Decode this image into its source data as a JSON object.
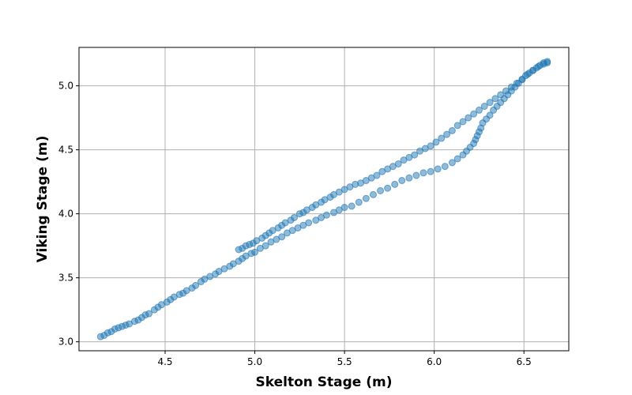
{
  "chart_data": {
    "type": "scatter",
    "title": "",
    "xlabel": "Skelton Stage (m)",
    "ylabel": "Viking Stage (m)",
    "xlim": [
      4.02,
      6.75
    ],
    "ylim": [
      2.93,
      5.3
    ],
    "xticks": [
      4.5,
      5.0,
      5.5,
      6.0,
      6.5
    ],
    "xtick_labels": [
      "4.5",
      "5.0",
      "5.5",
      "6.0",
      "6.5"
    ],
    "yticks": [
      3.0,
      3.5,
      4.0,
      4.5,
      5.0
    ],
    "ytick_labels": [
      "3.0",
      "3.5",
      "4.0",
      "4.5",
      "5.0"
    ],
    "grid": true,
    "color": "#1f77b4",
    "series": [
      {
        "points": [
          [
            4.14,
            3.04
          ],
          [
            4.16,
            3.05
          ],
          [
            4.18,
            3.07
          ],
          [
            4.2,
            3.08
          ],
          [
            4.22,
            3.1
          ],
          [
            4.24,
            3.11
          ],
          [
            4.26,
            3.12
          ],
          [
            4.28,
            3.13
          ],
          [
            4.3,
            3.14
          ],
          [
            4.33,
            3.16
          ],
          [
            4.35,
            3.17
          ],
          [
            4.37,
            3.19
          ],
          [
            4.39,
            3.21
          ],
          [
            4.41,
            3.22
          ],
          [
            4.44,
            3.25
          ],
          [
            4.46,
            3.27
          ],
          [
            4.48,
            3.29
          ],
          [
            4.51,
            3.31
          ],
          [
            4.53,
            3.33
          ],
          [
            4.55,
            3.35
          ],
          [
            4.58,
            3.37
          ],
          [
            4.6,
            3.38
          ],
          [
            4.62,
            3.4
          ],
          [
            4.65,
            3.42
          ],
          [
            4.67,
            3.44
          ],
          [
            4.7,
            3.47
          ],
          [
            4.72,
            3.49
          ],
          [
            4.75,
            3.51
          ],
          [
            4.78,
            3.53
          ],
          [
            4.8,
            3.55
          ],
          [
            4.83,
            3.57
          ],
          [
            4.86,
            3.59
          ],
          [
            4.88,
            3.61
          ],
          [
            4.91,
            3.63
          ],
          [
            4.93,
            3.65
          ],
          [
            4.95,
            3.67
          ],
          [
            4.98,
            3.69
          ],
          [
            5.0,
            3.7
          ],
          [
            5.03,
            3.73
          ],
          [
            5.06,
            3.75
          ],
          [
            5.09,
            3.78
          ],
          [
            5.12,
            3.8
          ],
          [
            5.15,
            3.82
          ],
          [
            5.18,
            3.85
          ],
          [
            5.21,
            3.87
          ],
          [
            5.24,
            3.89
          ],
          [
            5.27,
            3.91
          ],
          [
            5.3,
            3.93
          ],
          [
            5.34,
            3.95
          ],
          [
            5.37,
            3.97
          ],
          [
            5.4,
            3.99
          ],
          [
            5.44,
            4.01
          ],
          [
            5.47,
            4.03
          ],
          [
            5.5,
            4.05
          ],
          [
            5.54,
            4.06
          ],
          [
            5.58,
            4.09
          ],
          [
            5.62,
            4.12
          ],
          [
            5.66,
            4.15
          ],
          [
            5.7,
            4.18
          ],
          [
            5.74,
            4.2
          ],
          [
            5.78,
            4.23
          ],
          [
            5.82,
            4.26
          ],
          [
            5.86,
            4.28
          ],
          [
            5.9,
            4.3
          ],
          [
            5.94,
            4.32
          ],
          [
            5.98,
            4.33
          ],
          [
            6.02,
            4.35
          ],
          [
            6.06,
            4.37
          ],
          [
            6.1,
            4.4
          ],
          [
            6.13,
            4.43
          ],
          [
            6.16,
            4.46
          ],
          [
            6.18,
            4.49
          ],
          [
            6.2,
            4.52
          ],
          [
            6.22,
            4.55
          ],
          [
            6.23,
            4.58
          ],
          [
            6.24,
            4.61
          ],
          [
            6.25,
            4.64
          ],
          [
            6.26,
            4.67
          ],
          [
            6.27,
            4.71
          ],
          [
            6.29,
            4.74
          ],
          [
            6.31,
            4.77
          ],
          [
            6.33,
            4.81
          ],
          [
            6.35,
            4.84
          ],
          [
            6.37,
            4.87
          ],
          [
            6.39,
            4.9
          ],
          [
            6.41,
            4.93
          ],
          [
            6.43,
            4.96
          ],
          [
            6.45,
            4.99
          ],
          [
            6.47,
            5.02
          ],
          [
            6.49,
            5.05
          ],
          [
            6.51,
            5.08
          ],
          [
            6.53,
            5.1
          ],
          [
            6.55,
            5.12
          ],
          [
            6.57,
            5.14
          ],
          [
            6.59,
            5.16
          ],
          [
            6.61,
            5.18
          ],
          [
            6.63,
            5.18
          ]
        ]
      },
      {
        "points": [
          [
            4.91,
            3.72
          ],
          [
            4.93,
            3.73
          ],
          [
            4.95,
            3.75
          ],
          [
            4.97,
            3.76
          ],
          [
            4.99,
            3.77
          ],
          [
            5.01,
            3.79
          ],
          [
            5.04,
            3.81
          ],
          [
            5.06,
            3.83
          ],
          [
            5.08,
            3.85
          ],
          [
            5.1,
            3.87
          ],
          [
            5.13,
            3.89
          ],
          [
            5.15,
            3.91
          ],
          [
            5.17,
            3.93
          ],
          [
            5.2,
            3.95
          ],
          [
            5.22,
            3.97
          ],
          [
            5.25,
            4.0
          ],
          [
            5.27,
            4.01
          ],
          [
            5.29,
            4.03
          ],
          [
            5.32,
            4.05
          ],
          [
            5.34,
            4.07
          ],
          [
            5.37,
            4.09
          ],
          [
            5.39,
            4.11
          ],
          [
            5.42,
            4.13
          ],
          [
            5.44,
            4.15
          ],
          [
            5.47,
            4.17
          ],
          [
            5.5,
            4.19
          ],
          [
            5.53,
            4.21
          ],
          [
            5.56,
            4.23
          ],
          [
            5.59,
            4.24
          ],
          [
            5.62,
            4.26
          ],
          [
            5.65,
            4.28
          ],
          [
            5.68,
            4.3
          ],
          [
            5.71,
            4.33
          ],
          [
            5.74,
            4.35
          ],
          [
            5.77,
            4.37
          ],
          [
            5.8,
            4.39
          ],
          [
            5.83,
            4.42
          ],
          [
            5.86,
            4.44
          ],
          [
            5.89,
            4.46
          ],
          [
            5.92,
            4.49
          ],
          [
            5.95,
            4.51
          ],
          [
            5.98,
            4.53
          ],
          [
            6.01,
            4.56
          ],
          [
            6.04,
            4.59
          ],
          [
            6.07,
            4.62
          ],
          [
            6.1,
            4.65
          ],
          [
            6.13,
            4.69
          ],
          [
            6.16,
            4.72
          ],
          [
            6.19,
            4.75
          ],
          [
            6.22,
            4.78
          ],
          [
            6.25,
            4.81
          ],
          [
            6.28,
            4.84
          ],
          [
            6.31,
            4.87
          ],
          [
            6.34,
            4.9
          ],
          [
            6.37,
            4.93
          ],
          [
            6.4,
            4.96
          ],
          [
            6.43,
            4.99
          ],
          [
            6.46,
            5.02
          ],
          [
            6.49,
            5.05
          ],
          [
            6.52,
            5.09
          ],
          [
            6.55,
            5.12
          ],
          [
            6.58,
            5.15
          ],
          [
            6.61,
            5.17
          ],
          [
            6.63,
            5.19
          ]
        ]
      }
    ]
  }
}
